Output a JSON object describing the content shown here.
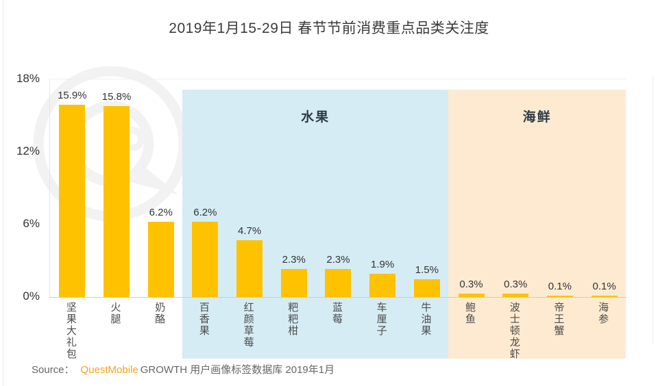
{
  "title": "2019年1月15-29日 春节节前消费重点品类关注度",
  "source": {
    "prefix": "Source：",
    "brand": "QuestMobile",
    "suffix": "GROWTH 用户画像标签数据库 2019年1月"
  },
  "watermark": {
    "name": "questmobile-logo-watermark",
    "color": "#F2F2F2"
  },
  "colors": {
    "bar": "#FEC200",
    "fruit_region_bg": "#D6ECF5",
    "seafood_region_bg": "#FDEAD1",
    "brand_orange": "#F7A21B",
    "region_label_text": "#2D3A47",
    "axis_text": "#333333",
    "category_text": "#4C4C4C",
    "source_text": "#666666",
    "axis_line": "#CCCCCC",
    "grid_line": "#EFEFEF"
  },
  "chart_data": {
    "type": "bar",
    "title": "2019年1月15-29日 春节节前消费重点品类关注度",
    "categories": [
      "坚果大礼包",
      "火腿",
      "奶酪",
      "百香果",
      "红颜草莓",
      "粑粑柑",
      "蓝莓",
      "车厘子",
      "牛油果",
      "鲍鱼",
      "波士顿龙虾",
      "帝王蟹",
      "海参"
    ],
    "values": [
      15.9,
      15.8,
      6.2,
      6.2,
      4.7,
      2.3,
      2.3,
      1.9,
      1.5,
      0.3,
      0.3,
      0.1,
      0.1
    ],
    "value_labels": [
      "15.9%",
      "15.8%",
      "6.2%",
      "6.2%",
      "4.7%",
      "2.3%",
      "2.3%",
      "1.9%",
      "1.5%",
      "0.3%",
      "0.3%",
      "0.1%",
      "0.1%"
    ],
    "xlabel": "",
    "ylabel": "",
    "ylim": [
      0,
      18
    ],
    "y_ticks": [
      {
        "value": 18,
        "label": "18%"
      },
      {
        "value": 12,
        "label": "12%"
      },
      {
        "value": 6,
        "label": "6%"
      },
      {
        "value": 0,
        "label": "0%"
      }
    ],
    "grid": "top-line-only",
    "legend": "none",
    "regions": [
      {
        "label": "水果",
        "start_index": 3,
        "end_index": 8,
        "bg": "#D6ECF5"
      },
      {
        "label": "海鲜",
        "start_index": 9,
        "end_index": 12,
        "bg": "#FDEAD1"
      }
    ]
  }
}
